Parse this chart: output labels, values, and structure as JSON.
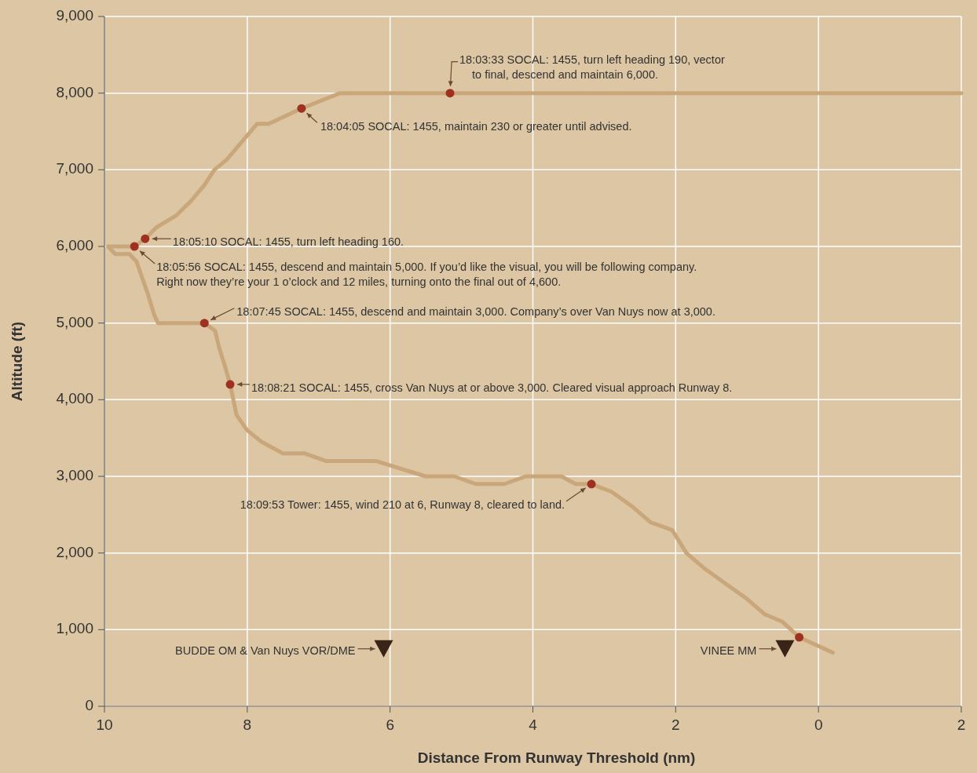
{
  "chart_data": {
    "type": "line",
    "xlabel": "Distance From Runway Threshold (nm)",
    "ylabel": "Altitude (ft)",
    "xlim": [
      10,
      -2
    ],
    "xticks": [
      10,
      8,
      6,
      4,
      2,
      0,
      {
        "value": -2,
        "label": "2"
      }
    ],
    "ylim": [
      0,
      9000
    ],
    "yticks": [
      0,
      {
        "value": 1000,
        "label": "1,000"
      },
      {
        "value": 2000,
        "label": "2,000"
      },
      {
        "value": 3000,
        "label": "3,000"
      },
      {
        "value": 4000,
        "label": "4,000"
      },
      {
        "value": 5000,
        "label": "5,000"
      },
      {
        "value": 6000,
        "label": "6,000"
      },
      {
        "value": 7000,
        "label": "7,000"
      },
      {
        "value": 8000,
        "label": "8,000"
      },
      {
        "value": 9000,
        "label": "9,000"
      }
    ],
    "grid": true,
    "legend": false,
    "series": [
      {
        "color": "#c9a77a",
        "marker": "none",
        "x": [
          -2,
          6.7,
          7.24,
          7.7,
          7.86,
          8.29,
          8.46,
          8.6,
          8.78,
          9.0,
          9.27,
          9.43,
          9.58,
          9.95,
          9.85,
          9.65,
          9.55,
          9.4,
          9.3,
          9.25,
          8.6,
          8.45,
          8.4,
          8.3,
          8.24,
          8.15,
          8.0,
          7.8,
          7.5,
          7.2,
          6.9,
          6.2,
          5.5,
          5.1,
          4.8,
          4.4,
          4.1,
          3.6,
          3.4,
          3.18,
          2.9,
          2.6,
          2.35,
          2.05,
          1.85,
          1.6,
          1.0,
          0.75,
          0.5,
          0.27,
          -0.2
        ],
        "values": [
          8000,
          8000,
          7800,
          7600,
          7600,
          7130,
          7000,
          6800,
          6600,
          6400,
          6250,
          6100,
          6000,
          6000,
          5900,
          5900,
          5800,
          5400,
          5100,
          5000,
          5000,
          4900,
          4700,
          4400,
          4200,
          3800,
          3600,
          3450,
          3300,
          3300,
          3200,
          3200,
          3000,
          3000,
          2900,
          2900,
          3000,
          3000,
          2900,
          2900,
          2800,
          2600,
          2400,
          2300,
          2000,
          1800,
          1400,
          1200,
          1100,
          900,
          700
        ]
      },
      {
        "type": "scatter",
        "color": "#a0301f",
        "marker": "circle",
        "x": [
          5.16,
          7.24,
          9.43,
          9.58,
          8.6,
          8.24,
          3.18,
          0.27
        ],
        "values": [
          8000,
          7800,
          6100,
          6000,
          5000,
          4200,
          2900,
          900
        ]
      },
      {
        "type": "scatter",
        "color": "#3a2418",
        "marker": "triangle",
        "x": [
          6.09,
          0.47
        ],
        "values": [
          750,
          750
        ]
      }
    ],
    "annotations": [
      {
        "text": "18:03:33 SOCAL:  1455, turn left heading 190, vector\nto final, descend and maintain 6,000.",
        "x": 5.16,
        "y": 8000
      },
      {
        "text": "18:04:05 SOCAL:  1455, maintain 230 or greater until advised.",
        "x": 7.24,
        "y": 7800
      },
      {
        "text": "18:05:10 SOCAL:  1455, turn left heading 160.",
        "x": 9.43,
        "y": 6100
      },
      {
        "text": "18:05:56 SOCAL:  1455, descend and maintain 5,000. If you’d like the visual,  you will be following company.\nRight now they’re your 1 o’clock and 12 miles, turning onto the final out of 4,600.",
        "x": 9.58,
        "y": 6000
      },
      {
        "text": "18:07:45 SOCAL:  1455, descend and maintain 3,000. Company’s over Van Nuys now at 3,000.",
        "x": 8.6,
        "y": 5000
      },
      {
        "text": "18:08:21 SOCAL:  1455, cross Van Nuys at or above 3,000. Cleared visual approach Runway 8.",
        "x": 8.24,
        "y": 4200
      },
      {
        "text": "18:09:53 Tower:  1455, wind 210 at 6, Runway 8, cleared to land.",
        "x": 3.18,
        "y": 2900
      },
      {
        "text": "BUDDE OM & Van Nuys VOR/DME",
        "x": 6.09,
        "y": 750
      },
      {
        "text": "VINEE MM",
        "x": 0.47,
        "y": 750
      }
    ]
  }
}
